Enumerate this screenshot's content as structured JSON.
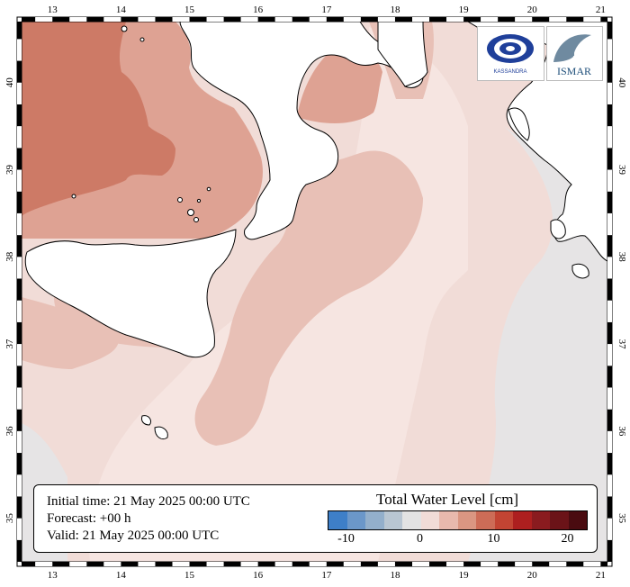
{
  "map": {
    "lon_ticks": [
      "13",
      "14",
      "15",
      "16",
      "17",
      "18",
      "19",
      "20",
      "21"
    ],
    "lat_ticks": [
      "40",
      "39",
      "38",
      "37",
      "36",
      "35"
    ],
    "lon_range": [
      12.55,
      21.1
    ],
    "lat_range": [
      34.5,
      40.7
    ],
    "colors": {
      "sea_base": "#f1dcd7",
      "sea_light": "#f6e5e1",
      "sea_mid": "#e8c0b6",
      "sea_dark": "#dea293",
      "sea_darker": "#cd7a66",
      "sea_neutral": "#e6e4e5",
      "land": "#ffffff"
    }
  },
  "logos": {
    "kassandra_text": "KASSANDRA",
    "ismar_text": "ISMAR"
  },
  "info": {
    "initial_time": "Initial time: 21 May 2025 00:00 UTC",
    "forecast": "Forecast: +00 h",
    "valid": "Valid: 21 May 2025 00:00 UTC"
  },
  "legend": {
    "title": "Total Water Level [cm]",
    "colors": [
      "#3e7fc8",
      "#6b97c9",
      "#93afcb",
      "#b9c6d2",
      "#e3e3e3",
      "#f1dcd7",
      "#e8b9ad",
      "#da9682",
      "#cd6c57",
      "#c24433",
      "#ad1f1f",
      "#8a1b1f",
      "#6b1318",
      "#4a0b10"
    ],
    "tick_labels": [
      "-10",
      "0",
      "10",
      "20"
    ],
    "tick_values": [
      -10,
      0,
      10,
      20
    ],
    "range": [
      -12.5,
      22.5
    ]
  }
}
